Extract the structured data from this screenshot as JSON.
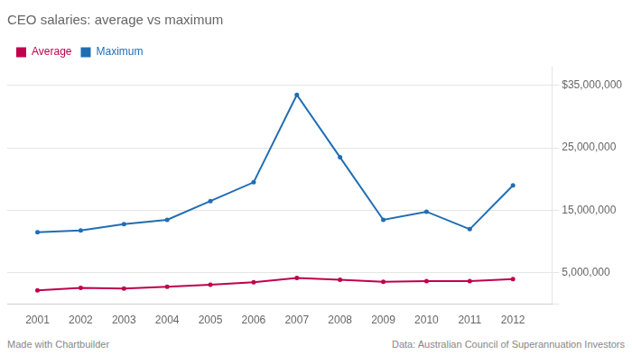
{
  "chart_data": {
    "type": "line",
    "title": "CEO salaries: average vs maximum",
    "x": [
      2001,
      2002,
      2003,
      2004,
      2005,
      2006,
      2007,
      2008,
      2009,
      2010,
      2011,
      2012
    ],
    "series": [
      {
        "name": "Average",
        "color": "#c0004c",
        "marker": "circle",
        "values": [
          2200000,
          2600000,
          2500000,
          2800000,
          3100000,
          3500000,
          4200000,
          3900000,
          3600000,
          3700000,
          3700000,
          4000000
        ]
      },
      {
        "name": "Maximum",
        "color": "#1f6eb5",
        "marker": "circle",
        "values": [
          11500000,
          11800000,
          12800000,
          13500000,
          16500000,
          19500000,
          33500000,
          23500000,
          13500000,
          14800000,
          12000000,
          19000000
        ]
      }
    ],
    "xlim": [
      2000.3,
      2012.9
    ],
    "xticks": [
      2001,
      2002,
      2003,
      2004,
      2005,
      2006,
      2007,
      2008,
      2009,
      2010,
      2011,
      2012
    ],
    "ylim": [
      0,
      38000000
    ],
    "yticks": [
      {
        "value": 0,
        "label": null
      },
      {
        "value": 5000000,
        "label": "5,000,000"
      },
      {
        "value": 15000000,
        "label": "15,000,000"
      },
      {
        "value": 25000000,
        "label": "25,000,000"
      },
      {
        "value": 35000000,
        "label": "$35,000,000"
      }
    ],
    "grid": "y",
    "legend": "upper left",
    "annotations": [
      "Made with Chartbuilder",
      "Data: Australian Council of Superannuation Investors"
    ]
  }
}
